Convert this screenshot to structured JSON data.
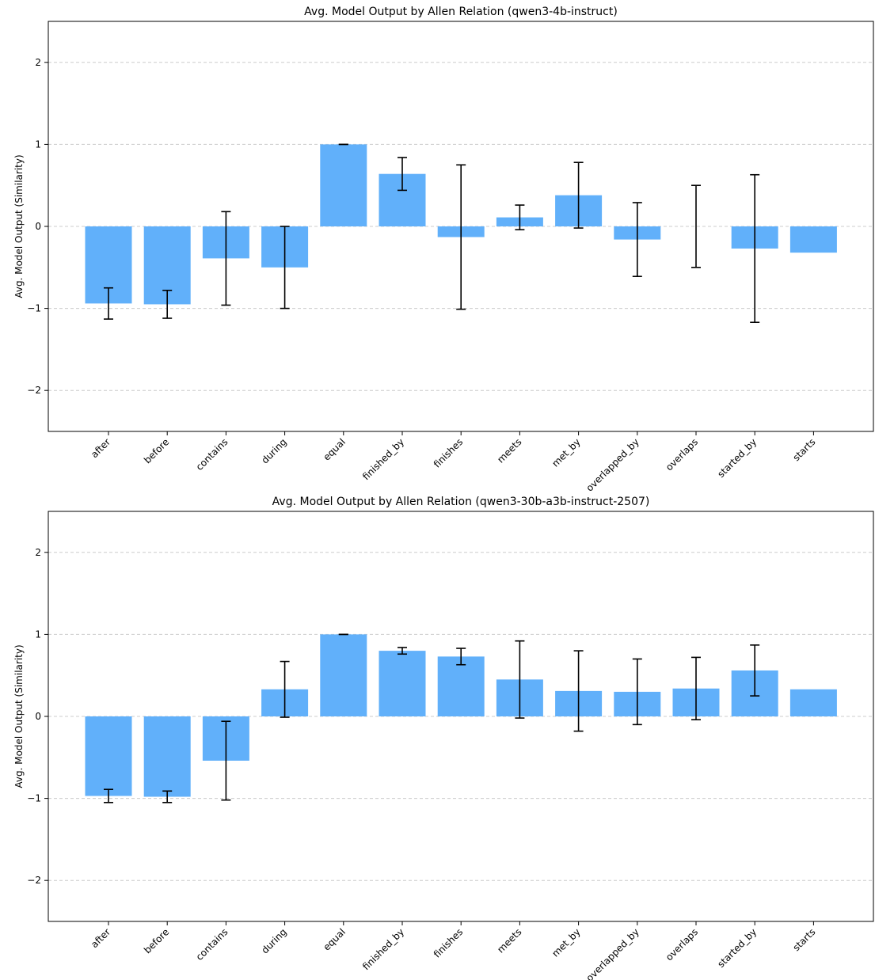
{
  "chart_data": [
    {
      "type": "bar",
      "title": "Avg. Model Output by Allen Relation (qwen3-4b-instruct)",
      "xlabel": "",
      "ylabel": "Avg. Model Output (Similarity)",
      "ylim": [
        -2.5,
        2.5
      ],
      "yticks": [
        2,
        1,
        0,
        -1,
        -2
      ],
      "ytick_labels": [
        "2",
        "1",
        "0",
        "−1",
        "−2"
      ],
      "grid": true,
      "categories": [
        "after",
        "before",
        "contains",
        "during",
        "equal",
        "finished_by",
        "finishes",
        "meets",
        "met_by",
        "overlapped_by",
        "overlaps",
        "started_by",
        "starts"
      ],
      "values": [
        -0.94,
        -0.95,
        -0.39,
        -0.5,
        1.0,
        0.64,
        -0.13,
        0.11,
        0.38,
        -0.16,
        0.0,
        -0.27,
        -0.32
      ],
      "error": [
        0.19,
        0.17,
        0.57,
        0.5,
        0.0,
        0.2,
        0.88,
        0.15,
        0.4,
        0.45,
        0.5,
        0.9,
        0.0
      ],
      "color": "#61b0fa"
    },
    {
      "type": "bar",
      "title": "Avg. Model Output by Allen Relation (qwen3-30b-a3b-instruct-2507)",
      "xlabel": "",
      "ylabel": "Avg. Model Output (Similarity)",
      "ylim": [
        -2.5,
        2.5
      ],
      "yticks": [
        2,
        1,
        0,
        -1,
        -2
      ],
      "ytick_labels": [
        "2",
        "1",
        "0",
        "−1",
        "−2"
      ],
      "grid": true,
      "categories": [
        "after",
        "before",
        "contains",
        "during",
        "equal",
        "finished_by",
        "finishes",
        "meets",
        "met_by",
        "overlapped_by",
        "overlaps",
        "started_by",
        "starts"
      ],
      "values": [
        -0.97,
        -0.98,
        -0.54,
        0.33,
        1.0,
        0.8,
        0.73,
        0.45,
        0.31,
        0.3,
        0.34,
        0.56,
        0.33
      ],
      "error": [
        0.08,
        0.07,
        0.48,
        0.34,
        0.0,
        0.04,
        0.1,
        0.47,
        0.49,
        0.4,
        0.38,
        0.31,
        0.0
      ],
      "color": "#61b0fa"
    }
  ]
}
